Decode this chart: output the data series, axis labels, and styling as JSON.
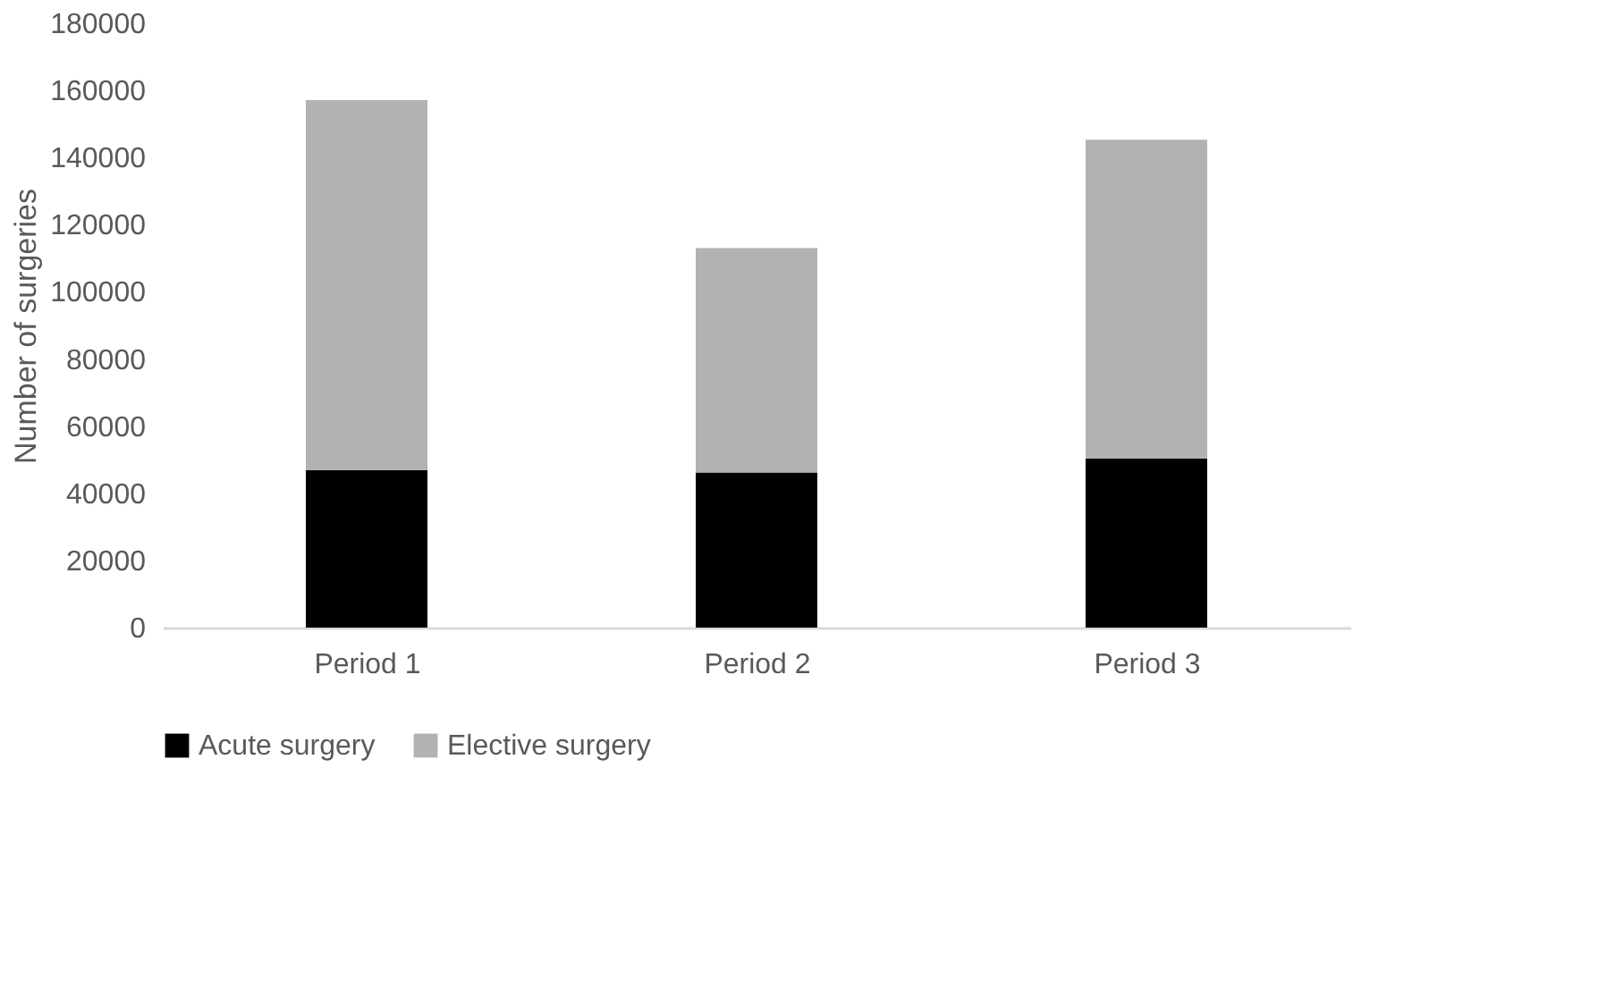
{
  "chart_data": {
    "type": "bar",
    "stacked": true,
    "ylabel": "Number of surgeries",
    "categories": [
      "Period 1",
      "Period 2",
      "Period 3"
    ],
    "series": [
      {
        "name": "Acute surgery",
        "color": "#000000",
        "values": [
          46900,
          46200,
          50400
        ]
      },
      {
        "name": "Elective surgery",
        "color": "#b2b2b2",
        "values": [
          110200,
          66800,
          94900
        ]
      }
    ],
    "ylim": [
      0,
      180000
    ],
    "yticks": [
      0,
      20000,
      40000,
      60000,
      80000,
      100000,
      120000,
      140000,
      160000,
      180000
    ],
    "grid": false,
    "legend": "bottom"
  }
}
